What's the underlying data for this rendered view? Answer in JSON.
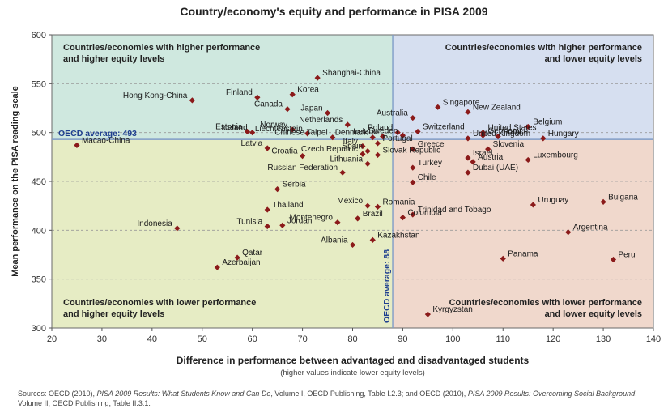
{
  "chart_data": {
    "type": "scatter",
    "title": "Country/economy's equity and performance in PISA 2009",
    "xlabel": "Difference in performance between advantaged and disadvantaged students",
    "xlabel_sub": "(higher values indicate lower equity levels)",
    "ylabel": "Mean performance on the PISA reading scale",
    "xlim": [
      20,
      140
    ],
    "ylim": [
      300,
      600
    ],
    "xticks": [
      20,
      30,
      40,
      50,
      60,
      70,
      80,
      90,
      100,
      110,
      120,
      130,
      140
    ],
    "yticks": [
      300,
      350,
      400,
      450,
      500,
      550,
      600
    ],
    "grid": "horizontal dashed",
    "reference_lines": {
      "oecd_avg_y": 493,
      "oecd_avg_x": 88,
      "y_label": "OECD average: 493",
      "x_label": "OECD average: 88"
    },
    "quadrants": {
      "top_left": {
        "label": "Countries/economies with higher performance and higher equity levels",
        "color": "#cfe8df"
      },
      "top_right": {
        "label": "Countries/economies with higher performance and lower equity levels",
        "color": "#d6dff0"
      },
      "bottom_left": {
        "label": "Countries/economies with lower performance and higher equity levels",
        "color": "#e6ecc4"
      },
      "bottom_right": {
        "label": "Countries/economies with lower performance and lower equity levels",
        "color": "#f0d8cc"
      }
    },
    "marker_color": "#8b1a1a",
    "points": [
      {
        "name": "Shanghai-China",
        "x": 73,
        "y": 556
      },
      {
        "name": "Korea",
        "x": 68,
        "y": 539
      },
      {
        "name": "Finland",
        "x": 61,
        "y": 536
      },
      {
        "name": "Hong Kong-China",
        "x": 48,
        "y": 533
      },
      {
        "name": "Canada",
        "x": 67,
        "y": 524
      },
      {
        "name": "Singapore",
        "x": 97,
        "y": 526
      },
      {
        "name": "New Zealand",
        "x": 103,
        "y": 521
      },
      {
        "name": "Japan",
        "x": 75,
        "y": 520
      },
      {
        "name": "Australia",
        "x": 92,
        "y": 515
      },
      {
        "name": "Netherlands",
        "x": 79,
        "y": 508
      },
      {
        "name": "Belgium",
        "x": 115,
        "y": 506
      },
      {
        "name": "Norway",
        "x": 68,
        "y": 503
      },
      {
        "name": "Estonia",
        "x": 59,
        "y": 501
      },
      {
        "name": "Switzerland",
        "x": 93,
        "y": 501
      },
      {
        "name": "Poland",
        "x": 89,
        "y": 500
      },
      {
        "name": "Iceland",
        "x": 60,
        "y": 500
      },
      {
        "name": "United States",
        "x": 106,
        "y": 500
      },
      {
        "name": "Liechtenstein",
        "x": 71,
        "y": 499
      },
      {
        "name": "Sweden",
        "x": 90,
        "y": 497
      },
      {
        "name": "Germany",
        "x": 106,
        "y": 497
      },
      {
        "name": "Ireland",
        "x": 86,
        "y": 496
      },
      {
        "name": "France",
        "x": 109,
        "y": 496
      },
      {
        "name": "Chinese Taipei",
        "x": 76,
        "y": 495
      },
      {
        "name": "Denmark",
        "x": 84,
        "y": 495
      },
      {
        "name": "United Kingdom",
        "x": 103,
        "y": 494
      },
      {
        "name": "Hungary",
        "x": 118,
        "y": 494
      },
      {
        "name": "Portugal",
        "x": 85,
        "y": 489
      },
      {
        "name": "Macao-China",
        "x": 25,
        "y": 487
      },
      {
        "name": "Italy",
        "x": 82,
        "y": 486
      },
      {
        "name": "Latvia",
        "x": 63,
        "y": 484
      },
      {
        "name": "Slovenia",
        "x": 107,
        "y": 483
      },
      {
        "name": "Greece",
        "x": 92,
        "y": 483
      },
      {
        "name": "Spain",
        "x": 83,
        "y": 481
      },
      {
        "name": "Czech Republic",
        "x": 82,
        "y": 478
      },
      {
        "name": "Slovak Republic",
        "x": 85,
        "y": 477
      },
      {
        "name": "Croatia",
        "x": 70,
        "y": 476
      },
      {
        "name": "Israel",
        "x": 103,
        "y": 474
      },
      {
        "name": "Luxembourg",
        "x": 115,
        "y": 472
      },
      {
        "name": "Austria",
        "x": 104,
        "y": 470
      },
      {
        "name": "Lithuania",
        "x": 83,
        "y": 468
      },
      {
        "name": "Turkey",
        "x": 92,
        "y": 464
      },
      {
        "name": "Dubai (UAE)",
        "x": 103,
        "y": 459
      },
      {
        "name": "Russian Federation",
        "x": 78,
        "y": 459
      },
      {
        "name": "Chile",
        "x": 92,
        "y": 449
      },
      {
        "name": "Serbia",
        "x": 65,
        "y": 442
      },
      {
        "name": "Bulgaria",
        "x": 130,
        "y": 429
      },
      {
        "name": "Uruguay",
        "x": 116,
        "y": 426
      },
      {
        "name": "Mexico",
        "x": 83,
        "y": 425
      },
      {
        "name": "Romania",
        "x": 85,
        "y": 424
      },
      {
        "name": "Thailand",
        "x": 63,
        "y": 421
      },
      {
        "name": "Trinidad and Tobago",
        "x": 92,
        "y": 416
      },
      {
        "name": "Colombia",
        "x": 90,
        "y": 413
      },
      {
        "name": "Brazil",
        "x": 81,
        "y": 412
      },
      {
        "name": "Montenegro",
        "x": 77,
        "y": 408
      },
      {
        "name": "Jordan",
        "x": 66,
        "y": 405
      },
      {
        "name": "Tunisia",
        "x": 63,
        "y": 404
      },
      {
        "name": "Indonesia",
        "x": 45,
        "y": 402
      },
      {
        "name": "Argentina",
        "x": 123,
        "y": 398
      },
      {
        "name": "Kazakhstan",
        "x": 84,
        "y": 390
      },
      {
        "name": "Albania",
        "x": 80,
        "y": 385
      },
      {
        "name": "Qatar",
        "x": 57,
        "y": 372
      },
      {
        "name": "Panama",
        "x": 110,
        "y": 371
      },
      {
        "name": "Peru",
        "x": 132,
        "y": 370
      },
      {
        "name": "Azerbaijan",
        "x": 53,
        "y": 362
      },
      {
        "name": "Kyrgyzstan",
        "x": 95,
        "y": 314
      }
    ]
  },
  "source_note": {
    "prefix": "Sources: OECD (2010), ",
    "title1": "PISA 2009 Results: What Students Know and Can Do",
    "middle": ", Volume I, OECD Publishing, Table I.2.3; and OECD (2010), ",
    "title2": "PISA 2009 Results: Overcoming Social Background",
    "suffix": ", Volume II, OECD Publishing, Table II.3.1."
  }
}
